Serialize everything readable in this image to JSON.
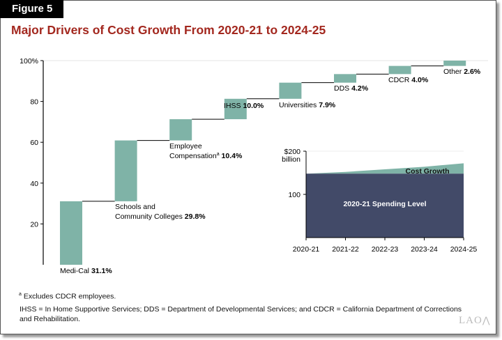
{
  "figure_label": "Figure 5",
  "title": "Major Drivers of Cost Growth From 2020-21 to 2024-25",
  "chart_data": [
    {
      "type": "waterfall",
      "ylim": [
        0,
        100
      ],
      "yticks": [
        20,
        40,
        60,
        80,
        100
      ],
      "ytick_labels": [
        "20",
        "40",
        "60",
        "80",
        "100%"
      ],
      "bar_color": "#7fb3a7",
      "items": [
        {
          "label_lines": [
            "Medi-Cal"
          ],
          "value_label": "31.1%",
          "value": 31.1
        },
        {
          "label_lines": [
            "Schools and",
            "Community Colleges"
          ],
          "value_label": "29.8%",
          "value": 29.8
        },
        {
          "label_lines": [
            "Employee",
            "Compensation"
          ],
          "superscript": "a",
          "value_label": "10.4%",
          "value": 10.4
        },
        {
          "label_lines": [
            "IHSS"
          ],
          "value_label": "10.0%",
          "value": 10.0
        },
        {
          "label_lines": [
            "Universities"
          ],
          "value_label": "7.9%",
          "value": 7.9
        },
        {
          "label_lines": [
            "DDS"
          ],
          "value_label": "4.2%",
          "value": 4.2
        },
        {
          "label_lines": [
            "CDCR"
          ],
          "value_label": "4.0%",
          "value": 4.0
        },
        {
          "label_lines": [
            "Other"
          ],
          "value_label": "2.6%",
          "value": 2.6
        }
      ]
    },
    {
      "type": "area",
      "categories": [
        "2020-21",
        "2021-22",
        "2022-23",
        "2023-24",
        "2024-25"
      ],
      "ylim": [
        0,
        200
      ],
      "ytick_labels": [
        "$200",
        "billion",
        "100"
      ],
      "series": [
        {
          "name": "2020-21 Spending Level",
          "values": [
            148,
            148,
            148,
            148,
            148
          ],
          "color": "#424a68"
        },
        {
          "name": "Cost Growth",
          "values": [
            0,
            4,
            10,
            16,
            24
          ],
          "color": "#7fb3a7"
        }
      ]
    }
  ],
  "footnotes": {
    "marker": "a",
    "note_a": "Excludes CDCR employees.",
    "abbrev_line1": "IHSS = In Home Supportive Services; DDS = Department of Developmental Services; and CDCR = California Department of Corrections",
    "abbrev_line2": "and Rehabilitation."
  },
  "logo": "LAO"
}
